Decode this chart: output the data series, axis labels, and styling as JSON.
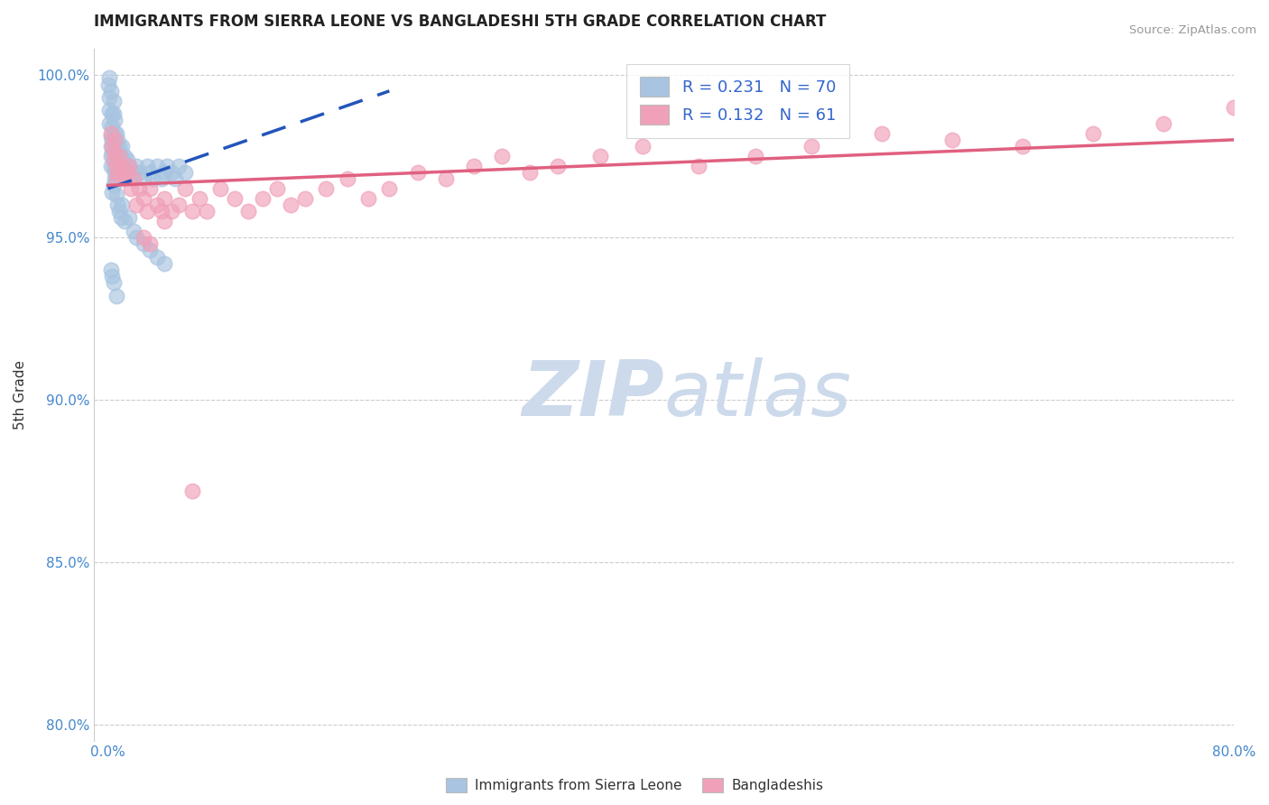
{
  "title": "IMMIGRANTS FROM SIERRA LEONE VS BANGLADESHI 5TH GRADE CORRELATION CHART",
  "source": "Source: ZipAtlas.com",
  "ylabel": "5th Grade",
  "xlim": [
    -0.01,
    0.8
  ],
  "ylim": [
    0.795,
    1.008
  ],
  "xtick_positions": [
    0.0,
    0.2,
    0.4,
    0.6,
    0.8
  ],
  "xtick_labels": [
    "0.0%",
    "",
    "",
    "",
    "80.0%"
  ],
  "ytick_positions": [
    0.8,
    0.85,
    0.9,
    0.95,
    1.0
  ],
  "ytick_labels": [
    "80.0%",
    "85.0%",
    "90.0%",
    "95.0%",
    "100.0%"
  ],
  "blue_R": 0.231,
  "blue_N": 70,
  "pink_R": 0.132,
  "pink_N": 61,
  "blue_color": "#a8c4e0",
  "pink_color": "#f0a0b8",
  "blue_line_color": "#2255bb",
  "pink_line_color": "#e06080",
  "legend_text_color": "#3366cc",
  "title_color": "#222222",
  "source_color": "#999999",
  "watermark_color": "#ccdaeb",
  "blue_x": [
    0.0005,
    0.001,
    0.001,
    0.001,
    0.001,
    0.002,
    0.002,
    0.002,
    0.002,
    0.002,
    0.003,
    0.003,
    0.003,
    0.003,
    0.004,
    0.004,
    0.004,
    0.005,
    0.005,
    0.005,
    0.006,
    0.006,
    0.007,
    0.007,
    0.008,
    0.008,
    0.009,
    0.01,
    0.01,
    0.011,
    0.012,
    0.013,
    0.014,
    0.015,
    0.016,
    0.018,
    0.02,
    0.022,
    0.025,
    0.028,
    0.03,
    0.032,
    0.035,
    0.038,
    0.04,
    0.042,
    0.045,
    0.048,
    0.05,
    0.055,
    0.003,
    0.004,
    0.005,
    0.006,
    0.007,
    0.008,
    0.009,
    0.01,
    0.012,
    0.015,
    0.018,
    0.02,
    0.025,
    0.03,
    0.035,
    0.04,
    0.002,
    0.003,
    0.004,
    0.006
  ],
  "blue_y": [
    0.997,
    0.993,
    0.989,
    0.985,
    0.999,
    0.981,
    0.978,
    0.975,
    0.972,
    0.995,
    0.988,
    0.984,
    0.98,
    0.976,
    0.992,
    0.988,
    0.972,
    0.986,
    0.982,
    0.97,
    0.982,
    0.978,
    0.98,
    0.975,
    0.978,
    0.973,
    0.975,
    0.978,
    0.972,
    0.973,
    0.975,
    0.97,
    0.974,
    0.972,
    0.968,
    0.97,
    0.972,
    0.97,
    0.968,
    0.972,
    0.97,
    0.968,
    0.972,
    0.968,
    0.97,
    0.972,
    0.97,
    0.968,
    0.972,
    0.97,
    0.964,
    0.966,
    0.968,
    0.963,
    0.96,
    0.958,
    0.956,
    0.96,
    0.955,
    0.956,
    0.952,
    0.95,
    0.948,
    0.946,
    0.944,
    0.942,
    0.94,
    0.938,
    0.936,
    0.932
  ],
  "pink_x": [
    0.002,
    0.003,
    0.004,
    0.005,
    0.005,
    0.006,
    0.006,
    0.007,
    0.008,
    0.01,
    0.012,
    0.014,
    0.015,
    0.016,
    0.018,
    0.02,
    0.022,
    0.025,
    0.028,
    0.03,
    0.035,
    0.038,
    0.04,
    0.045,
    0.05,
    0.055,
    0.06,
    0.065,
    0.07,
    0.08,
    0.09,
    0.1,
    0.11,
    0.12,
    0.13,
    0.14,
    0.155,
    0.17,
    0.185,
    0.2,
    0.22,
    0.24,
    0.26,
    0.28,
    0.3,
    0.32,
    0.35,
    0.38,
    0.42,
    0.46,
    0.5,
    0.55,
    0.6,
    0.65,
    0.7,
    0.75,
    0.8,
    0.025,
    0.03,
    0.04,
    0.06
  ],
  "pink_y": [
    0.982,
    0.978,
    0.974,
    0.98,
    0.976,
    0.972,
    0.968,
    0.97,
    0.975,
    0.972,
    0.968,
    0.97,
    0.972,
    0.965,
    0.968,
    0.96,
    0.965,
    0.962,
    0.958,
    0.965,
    0.96,
    0.958,
    0.962,
    0.958,
    0.96,
    0.965,
    0.958,
    0.962,
    0.958,
    0.965,
    0.962,
    0.958,
    0.962,
    0.965,
    0.96,
    0.962,
    0.965,
    0.968,
    0.962,
    0.965,
    0.97,
    0.968,
    0.972,
    0.975,
    0.97,
    0.972,
    0.975,
    0.978,
    0.972,
    0.975,
    0.978,
    0.982,
    0.98,
    0.978,
    0.982,
    0.985,
    0.99,
    0.95,
    0.948,
    0.955,
    0.872
  ],
  "blue_line_x0": 0.0,
  "blue_line_x1": 0.2,
  "blue_line_y0": 0.965,
  "blue_line_y1": 0.995,
  "pink_line_x0": 0.0,
  "pink_line_x1": 0.8,
  "pink_line_y0": 0.966,
  "pink_line_y1": 0.98
}
